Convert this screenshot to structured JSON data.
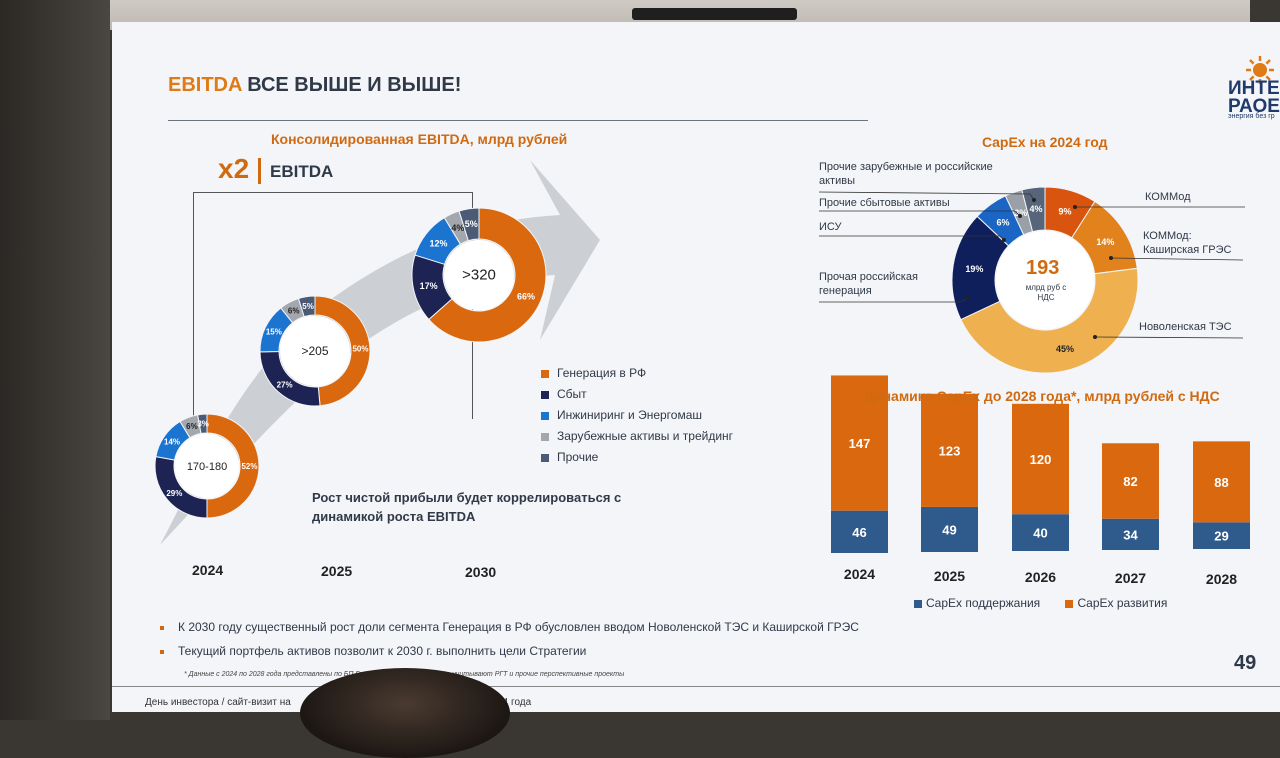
{
  "title": {
    "accent": "EBITDA",
    "rest": "ВСЕ ВЫШЕ И ВЫШЕ!"
  },
  "logo": {
    "word": "ИНТЕР РАОЕЭС",
    "tagline": "энергия без гр"
  },
  "ebitda_section": {
    "title": "Консолидированная EBITDA, млрд рублей",
    "multiplier": "x2",
    "multiplier_label": "EBITDA",
    "correlation_text": "Рост чистой прибыли будет коррелироваться с динамикой роста EBITDA"
  },
  "legend": [
    {
      "label": "Генерация в РФ",
      "color": "#d9680f"
    },
    {
      "label": "Сбыт",
      "color": "#1d2453"
    },
    {
      "label": "Инжиниринг и Энергомаш",
      "color": "#1b74d0"
    },
    {
      "label": "Зарубежные активы и трейдинг",
      "color": "#a3a7ae"
    },
    {
      "label": "Прочие",
      "color": "#4c5b75"
    }
  ],
  "capex_pie": {
    "title": "CapEx на 2024 год",
    "center_value": "193",
    "center_unit": "млрд руб с НДС",
    "callouts": [
      "Прочие зарубежные и российские активы",
      "Прочие сбытовые активы",
      "ИСУ",
      "Прочая российская генерация",
      "КОММод",
      "КОММод: Каширская ГРЭС",
      "Новоленская ТЭС"
    ]
  },
  "capex_bars": {
    "title": "Динамика CapEx до 2028 года*, млрд рублей с НДС",
    "legend": [
      {
        "label": "CapEx поддержания",
        "color": "#2f5a8c"
      },
      {
        "label": "CapEx развития",
        "color": "#d9680f"
      }
    ]
  },
  "chart_data": [
    {
      "type": "pie",
      "title": "Консолидированная EBITDA 2024",
      "center": "170-180",
      "year": "2024",
      "slices": [
        {
          "label": "Генерация в РФ",
          "value": 52
        },
        {
          "label": "Сбыт",
          "value": 29
        },
        {
          "label": "Инжиниринг и Энергомаш",
          "value": 14
        },
        {
          "label": "Зарубежные активы и трейдинг",
          "value": 6
        },
        {
          "label": "Прочие",
          "value": 3
        }
      ]
    },
    {
      "type": "pie",
      "title": "Консолидированная EBITDA 2025",
      "center": ">205",
      "year": "2025",
      "slices": [
        {
          "label": "Генерация в РФ",
          "value": 50
        },
        {
          "label": "Сбыт",
          "value": 27
        },
        {
          "label": "Инжиниринг и Энергомаш",
          "value": 15
        },
        {
          "label": "Зарубежные активы и трейдинг",
          "value": 6
        },
        {
          "label": "Прочие",
          "value": 5
        }
      ]
    },
    {
      "type": "pie",
      "title": "Консолидированная EBITDA 2030",
      "center": ">320",
      "year": "2030",
      "slices": [
        {
          "label": "Генерация в РФ",
          "value": 66
        },
        {
          "label": "Сбыт",
          "value": 17
        },
        {
          "label": "Инжиниринг и Энергомаш",
          "value": 12
        },
        {
          "label": "Зарубежные активы и трейдинг",
          "value": 4
        },
        {
          "label": "Прочие",
          "value": 5
        }
      ]
    },
    {
      "type": "pie",
      "title": "CapEx на 2024 год",
      "slices": [
        {
          "label": "КОММод",
          "value": 9
        },
        {
          "label": "КОММод: Каширская ГРЭС",
          "value": 14
        },
        {
          "label": "Новоленская ТЭС",
          "value": 45
        },
        {
          "label": "Прочая российская генерация",
          "value": 19
        },
        {
          "label": "ИСУ",
          "value": 6
        },
        {
          "label": "Прочие сбытовые активы",
          "value": 3
        },
        {
          "label": "Прочие зарубежные и российские активы",
          "value": 4
        }
      ]
    },
    {
      "type": "bar",
      "title": "Динамика CapEx до 2028 года*, млрд рублей с НДС",
      "categories": [
        "2024",
        "2025",
        "2026",
        "2027",
        "2028"
      ],
      "series": [
        {
          "name": "CapEx поддержания",
          "values": [
            46,
            49,
            40,
            34,
            29
          ]
        },
        {
          "name": "CapEx развития",
          "values": [
            147,
            123,
            120,
            82,
            88
          ]
        }
      ]
    }
  ],
  "bullets": [
    "К 2030 году существенный рост доли сегмента Генерация в РФ обусловлен вводом Новоленской ТЭС и Каширской ГРЭС",
    "Текущий портфель активов позволит к 2030 г. выполнить цели Стратегии"
  ],
  "footnote": "* Данные с 2024 по 2028 года представлены по БП Группы на 2024-2028 гг. и не учитывают РГТ и прочие перспективные проекты",
  "page_number": "49",
  "footer": {
    "left": "День инвестора / сайт-визит на",
    "right": "августа 2024 года"
  }
}
